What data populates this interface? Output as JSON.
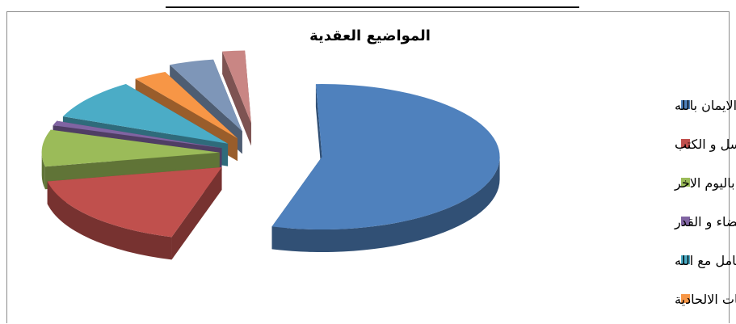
{
  "chart_data": {
    "type": "pie",
    "style": "3d-exploded",
    "title": "المواضيع العقدية",
    "legend_placement": "right",
    "categories": [
      "التوحيد و الايمان بالله",
      "الايمان بالرسل و الكتب",
      "الايمان باليوم الاخر",
      "الايمان بالقضاء و القدر",
      "التعامل مع الله",
      "الفلسفات الالحادية",
      "",
      ""
    ],
    "values": [
      54,
      17,
      8,
      1,
      9,
      3,
      4,
      2
    ],
    "colors": [
      "#4F81BD",
      "#C0504D",
      "#9BBB59",
      "#8064A2",
      "#4BACC6",
      "#F79646",
      "#7E96B8",
      "#C98684"
    ],
    "legend_visible_count": 6
  }
}
